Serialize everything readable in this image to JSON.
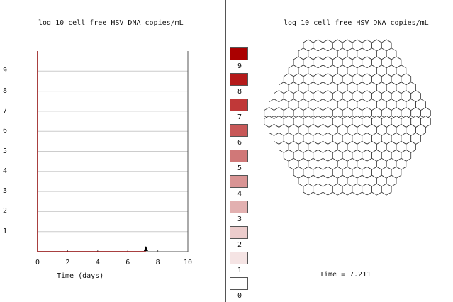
{
  "chart": {
    "title": "log 10 cell free HSV DNA copies/mL",
    "xlabel": "Time (days)",
    "y_tick_labels": [
      "9",
      "8",
      "7",
      "6",
      "5",
      "4",
      "3",
      "2",
      "1"
    ],
    "x_tick_labels": [
      "0",
      "2",
      "4",
      "6",
      "8",
      "10"
    ]
  },
  "chart_data": {
    "type": "line",
    "title": "log 10 cell free HSV DNA copies/mL",
    "xlabel": "Time (days)",
    "ylabel": "",
    "xlim": [
      0,
      10
    ],
    "ylim": [
      0,
      10
    ],
    "grid": true,
    "series": [
      {
        "x": [
          0,
          0,
          7.211
        ],
        "y": [
          10,
          0,
          0
        ]
      }
    ],
    "current_time_marker": 7.211
  },
  "grid": {
    "title": "log 10 cell free HSV DNA copies/mL",
    "time_readout": "Time = 7.211",
    "row_counts": [
      9,
      10,
      11,
      12,
      13,
      14,
      15,
      16,
      17,
      17,
      16,
      15,
      14,
      13,
      12,
      11,
      10,
      9
    ],
    "cell_fill": "#ffffff",
    "cell_stroke": "#333333"
  },
  "legend": {
    "items": [
      {
        "label": "9",
        "color": "#aa0000"
      },
      {
        "label": "8",
        "color": "#b51a1a"
      },
      {
        "label": "7",
        "color": "#c03838"
      },
      {
        "label": "6",
        "color": "#c85858"
      },
      {
        "label": "5",
        "color": "#d07878"
      },
      {
        "label": "4",
        "color": "#d99494"
      },
      {
        "label": "3",
        "color": "#e2b0b0"
      },
      {
        "label": "2",
        "color": "#eccccc"
      },
      {
        "label": "1",
        "color": "#f5e4e4"
      },
      {
        "label": "0",
        "color": "#ffffff"
      }
    ]
  },
  "colors": {
    "series_line": "#8b0000",
    "grid_line": "#cccccc",
    "axis": "#555555"
  }
}
